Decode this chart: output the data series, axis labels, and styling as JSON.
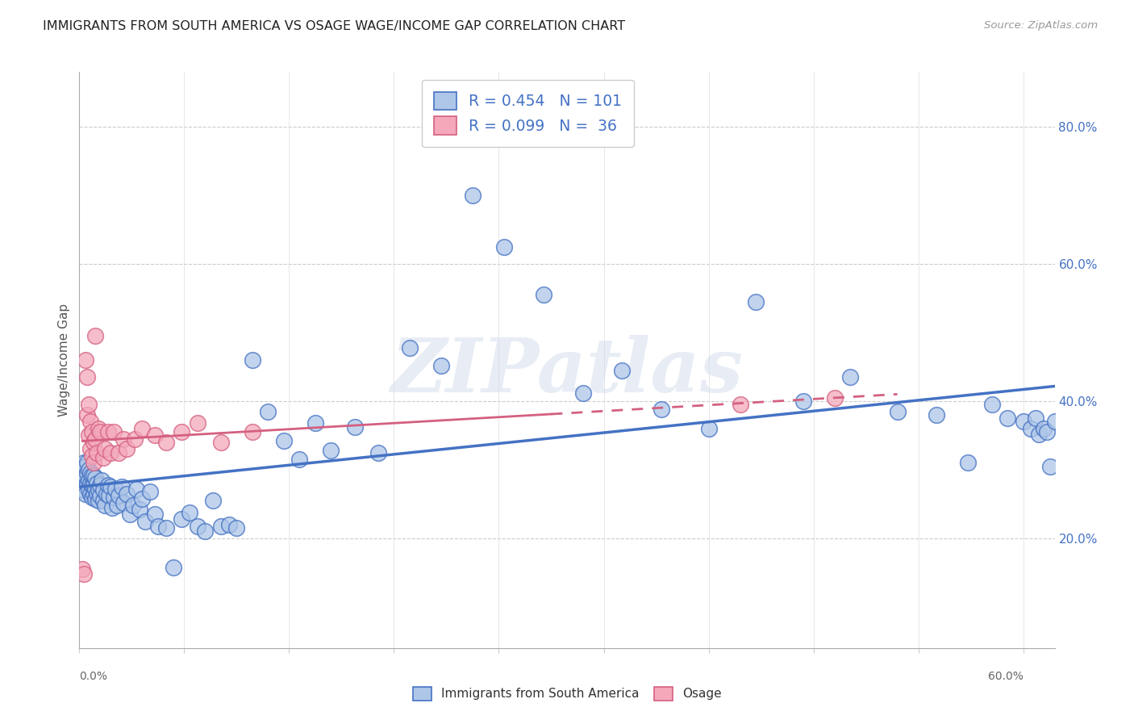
{
  "title": "IMMIGRANTS FROM SOUTH AMERICA VS OSAGE WAGE/INCOME GAP CORRELATION CHART",
  "source": "Source: ZipAtlas.com",
  "ylabel": "Wage/Income Gap",
  "watermark": "ZIPatlas",
  "legend1_text": "R = 0.454   N = 101",
  "legend2_text": "R = 0.099   N =  36",
  "blue_face": "#aec6e8",
  "blue_edge": "#4472c4",
  "pink_face": "#f4a8ba",
  "pink_edge": "#d46080",
  "blue_line": "#4472c4",
  "pink_line": "#d46080",
  "legend_text_color": "#4472c4",
  "xlim": [
    0.0,
    0.62
  ],
  "ylim": [
    0.04,
    0.88
  ],
  "right_yticks": [
    0.2,
    0.4,
    0.6,
    0.8
  ],
  "right_yticklabels": [
    "20.0%",
    "40.0%",
    "60.0%",
    "80.0%"
  ],
  "blue_x": [
    0.001,
    0.002,
    0.002,
    0.003,
    0.003,
    0.003,
    0.004,
    0.004,
    0.004,
    0.005,
    0.005,
    0.005,
    0.006,
    0.006,
    0.006,
    0.007,
    0.007,
    0.007,
    0.008,
    0.008,
    0.008,
    0.009,
    0.009,
    0.009,
    0.01,
    0.01,
    0.01,
    0.011,
    0.011,
    0.012,
    0.012,
    0.013,
    0.013,
    0.014,
    0.015,
    0.015,
    0.016,
    0.017,
    0.018,
    0.019,
    0.02,
    0.021,
    0.022,
    0.023,
    0.024,
    0.025,
    0.027,
    0.028,
    0.03,
    0.032,
    0.034,
    0.036,
    0.038,
    0.04,
    0.042,
    0.045,
    0.048,
    0.05,
    0.055,
    0.06,
    0.065,
    0.07,
    0.075,
    0.08,
    0.085,
    0.09,
    0.095,
    0.1,
    0.11,
    0.12,
    0.13,
    0.14,
    0.15,
    0.16,
    0.175,
    0.19,
    0.21,
    0.23,
    0.25,
    0.27,
    0.295,
    0.32,
    0.345,
    0.37,
    0.4,
    0.43,
    0.46,
    0.49,
    0.52,
    0.545,
    0.565,
    0.58,
    0.59,
    0.6,
    0.605,
    0.608,
    0.61,
    0.613,
    0.615,
    0.617,
    0.62
  ],
  "blue_y": [
    0.295,
    0.285,
    0.3,
    0.27,
    0.295,
    0.31,
    0.265,
    0.29,
    0.305,
    0.28,
    0.295,
    0.31,
    0.27,
    0.285,
    0.3,
    0.265,
    0.28,
    0.295,
    0.26,
    0.278,
    0.292,
    0.265,
    0.278,
    0.292,
    0.258,
    0.272,
    0.288,
    0.265,
    0.28,
    0.255,
    0.27,
    0.262,
    0.278,
    0.285,
    0.255,
    0.27,
    0.248,
    0.265,
    0.278,
    0.262,
    0.275,
    0.245,
    0.26,
    0.272,
    0.248,
    0.262,
    0.275,
    0.252,
    0.265,
    0.235,
    0.248,
    0.272,
    0.242,
    0.258,
    0.225,
    0.268,
    0.235,
    0.218,
    0.215,
    0.158,
    0.228,
    0.238,
    0.218,
    0.21,
    0.255,
    0.218,
    0.22,
    0.215,
    0.46,
    0.385,
    0.342,
    0.315,
    0.368,
    0.328,
    0.362,
    0.325,
    0.478,
    0.452,
    0.7,
    0.625,
    0.555,
    0.412,
    0.445,
    0.388,
    0.36,
    0.545,
    0.4,
    0.435,
    0.385,
    0.38,
    0.31,
    0.395,
    0.375,
    0.37,
    0.36,
    0.375,
    0.352,
    0.36,
    0.355,
    0.305,
    0.37
  ],
  "pink_x": [
    0.002,
    0.003,
    0.004,
    0.005,
    0.005,
    0.006,
    0.006,
    0.007,
    0.007,
    0.008,
    0.008,
    0.009,
    0.009,
    0.01,
    0.01,
    0.011,
    0.012,
    0.013,
    0.015,
    0.016,
    0.018,
    0.02,
    0.022,
    0.025,
    0.028,
    0.03,
    0.035,
    0.04,
    0.048,
    0.055,
    0.065,
    0.075,
    0.09,
    0.11,
    0.42,
    0.48
  ],
  "pink_y": [
    0.155,
    0.148,
    0.46,
    0.435,
    0.38,
    0.35,
    0.395,
    0.33,
    0.37,
    0.32,
    0.355,
    0.31,
    0.34,
    0.495,
    0.345,
    0.325,
    0.36,
    0.355,
    0.318,
    0.33,
    0.355,
    0.325,
    0.355,
    0.325,
    0.345,
    0.33,
    0.345,
    0.36,
    0.35,
    0.34,
    0.355,
    0.368,
    0.34,
    0.355,
    0.395,
    0.405
  ]
}
